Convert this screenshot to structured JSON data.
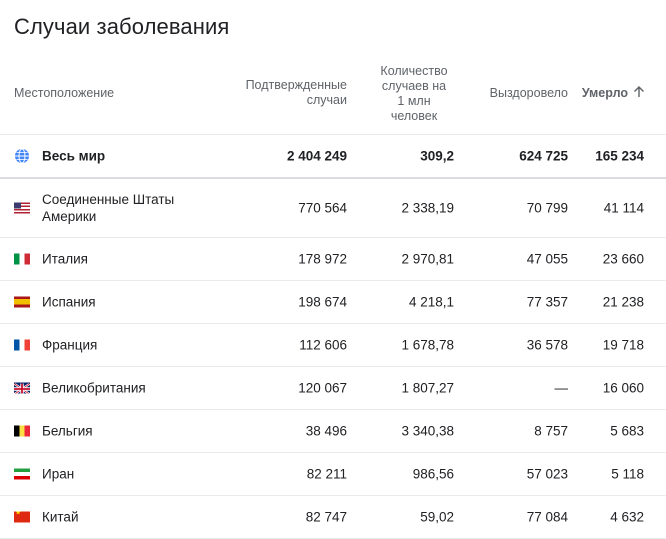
{
  "title": "Случаи заболевания",
  "headers": {
    "location": "Местоположение",
    "confirmed_line1": "Подтвержденные",
    "confirmed_line2": "случаи",
    "per_million_line1": "Количество",
    "per_million_line2": "случаев на",
    "per_million_line3": "1 млн",
    "per_million_line4": "человек",
    "recovered": "Выздоровело",
    "deaths": "Умерло",
    "deaths_sort_icon": "arrow-up-icon"
  },
  "world": {
    "icon": "globe-icon",
    "name": "Весь мир",
    "confirmed": "2 404 249",
    "per_million": "309,2",
    "recovered": "624 725",
    "deaths": "165 234"
  },
  "rows": [
    {
      "flag": "us",
      "name": "Соединенные Штаты Америки",
      "confirmed": "770 564",
      "per_million": "2 338,19",
      "recovered": "70 799",
      "deaths": "41 114"
    },
    {
      "flag": "it",
      "name": "Италия",
      "confirmed": "178 972",
      "per_million": "2 970,81",
      "recovered": "47 055",
      "deaths": "23 660"
    },
    {
      "flag": "es",
      "name": "Испания",
      "confirmed": "198 674",
      "per_million": "4 218,1",
      "recovered": "77 357",
      "deaths": "21 238"
    },
    {
      "flag": "fr",
      "name": "Франция",
      "confirmed": "112 606",
      "per_million": "1 678,78",
      "recovered": "36 578",
      "deaths": "19 718"
    },
    {
      "flag": "gb",
      "name": "Великобритания",
      "confirmed": "120 067",
      "per_million": "1 807,27",
      "recovered": "—",
      "deaths": "16 060"
    },
    {
      "flag": "be",
      "name": "Бельгия",
      "confirmed": "38 496",
      "per_million": "3 340,38",
      "recovered": "8 757",
      "deaths": "5 683"
    },
    {
      "flag": "ir",
      "name": "Иран",
      "confirmed": "82 211",
      "per_million": "986,56",
      "recovered": "57 023",
      "deaths": "5 118"
    },
    {
      "flag": "cn",
      "name": "Китай",
      "confirmed": "82 747",
      "per_million": "59,02",
      "recovered": "77 084",
      "deaths": "4 632"
    }
  ]
}
